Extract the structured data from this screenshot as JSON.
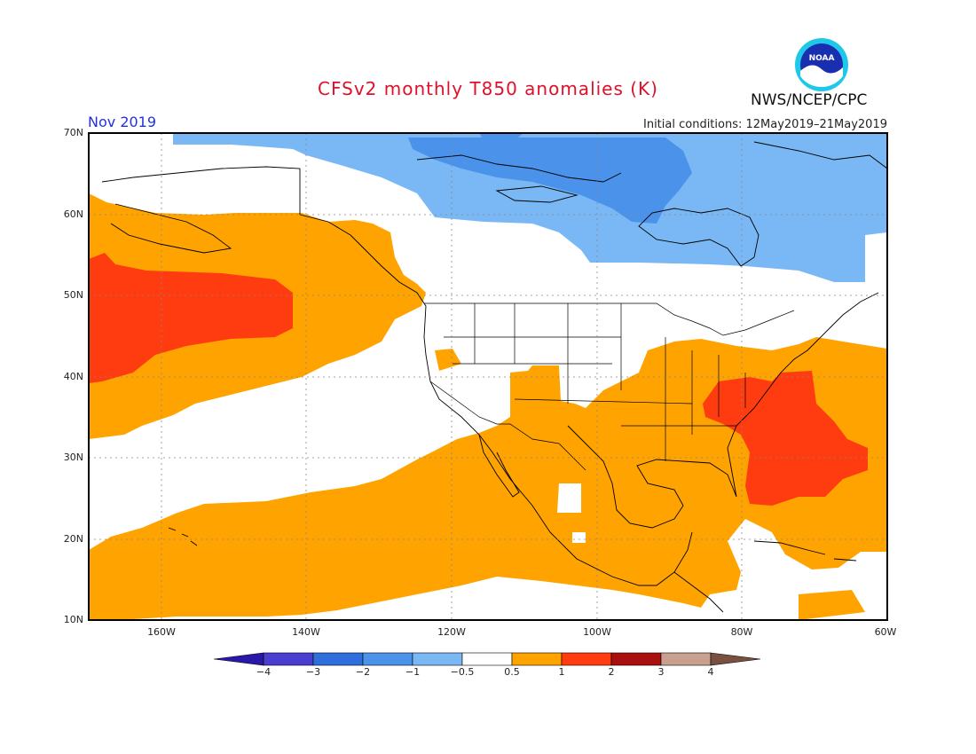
{
  "header": {
    "title": "CFSv2 monthly T850 anomalies (K)",
    "month": "Nov 2019",
    "initial_conditions": "Initial conditions: 12May2019–21May2019",
    "org": "NWS/NCEP/CPC",
    "logo_text": "NOAA"
  },
  "map": {
    "lat_labels": [
      "70N",
      "60N",
      "50N",
      "40N",
      "30N",
      "20N",
      "10N"
    ],
    "lon_labels": [
      "160W",
      "140W",
      "120W",
      "100W",
      "80W",
      "60W"
    ],
    "lat_range": [
      10,
      70
    ],
    "lon_range": [
      -170,
      -60
    ]
  },
  "colorbar": {
    "ticks": [
      "−4",
      "−3",
      "−2",
      "−1",
      "−0.5",
      "0.5",
      "1",
      "2",
      "3",
      "4"
    ],
    "colors": [
      "#2a18a8",
      "#4a3ed0",
      "#2e6fdb",
      "#4a92ea",
      "#7ab8f5",
      "#ffffff",
      "#ffa300",
      "#ff3b10",
      "#a81010",
      "#c9a090",
      "#7a5040"
    ]
  },
  "colors": {
    "anomaly_0_5_to_1": "#ffa300",
    "anomaly_1_to_2": "#ff3b10",
    "anomaly_neg_1_to_neg_0_5": "#7ab8f5",
    "anomaly_neg_2_to_neg_1": "#4a92ea"
  }
}
